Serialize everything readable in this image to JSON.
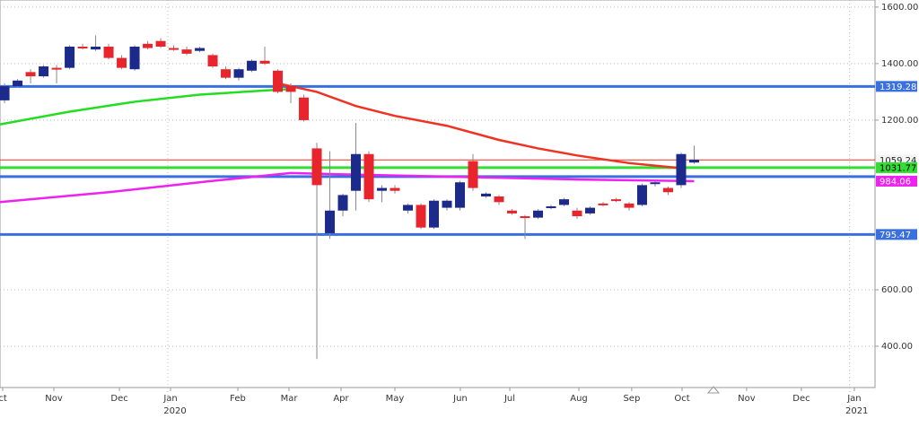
{
  "chart_data": {
    "type": "candlestick",
    "x": [
      0,
      1,
      2,
      3,
      4,
      5,
      6,
      7,
      8,
      9,
      10,
      11,
      12,
      13,
      14,
      15,
      16,
      17,
      18,
      19,
      20,
      21,
      22,
      23,
      24,
      25,
      26,
      27,
      28,
      29,
      30,
      31,
      32,
      33,
      34,
      35,
      36,
      37,
      38,
      39,
      40,
      41,
      42,
      43,
      44,
      45,
      46,
      47,
      48,
      49,
      50,
      51,
      52,
      53
    ],
    "open": [
      1270,
      1320,
      1370,
      1355,
      1385,
      1385,
      1460,
      1450,
      1460,
      1420,
      1380,
      1470,
      1480,
      1455,
      1450,
      1445,
      1430,
      1380,
      1350,
      1375,
      1410,
      1375,
      1320,
      1280,
      1100,
      800,
      880,
      950,
      1080,
      950,
      960,
      880,
      900,
      820,
      890,
      890,
      1055,
      930,
      930,
      880,
      860,
      855,
      890,
      900,
      880,
      870,
      905,
      920,
      905,
      900,
      975,
      960,
      970,
      1050
    ],
    "high": [
      1330,
      1345,
      1380,
      1395,
      1395,
      1465,
      1470,
      1500,
      1470,
      1430,
      1465,
      1480,
      1490,
      1465,
      1460,
      1460,
      1435,
      1390,
      1385,
      1415,
      1460,
      1380,
      1330,
      1290,
      1120,
      1090,
      940,
      1190,
      1090,
      970,
      970,
      905,
      905,
      920,
      920,
      985,
      1080,
      945,
      935,
      885,
      865,
      885,
      900,
      925,
      890,
      895,
      910,
      925,
      910,
      975,
      985,
      965,
      1085,
      1110
    ],
    "low": [
      1260,
      1315,
      1330,
      1350,
      1330,
      1380,
      1450,
      1445,
      1415,
      1380,
      1375,
      1450,
      1455,
      1445,
      1430,
      1440,
      1385,
      1345,
      1340,
      1370,
      1395,
      1295,
      1260,
      1195,
      355,
      780,
      860,
      880,
      910,
      910,
      940,
      870,
      815,
      815,
      880,
      880,
      950,
      925,
      900,
      865,
      780,
      850,
      885,
      895,
      850,
      865,
      895,
      910,
      880,
      895,
      965,
      935,
      960,
      1045
    ],
    "close": [
      1320,
      1340,
      1355,
      1390,
      1380,
      1460,
      1455,
      1460,
      1420,
      1385,
      1460,
      1455,
      1460,
      1450,
      1435,
      1455,
      1390,
      1350,
      1380,
      1410,
      1400,
      1300,
      1300,
      1200,
      970,
      880,
      935,
      1080,
      920,
      960,
      950,
      900,
      820,
      915,
      915,
      980,
      960,
      940,
      910,
      870,
      855,
      880,
      895,
      920,
      860,
      890,
      900,
      915,
      890,
      970,
      980,
      945,
      1080,
      1060
    ],
    "up_color": "#1c2a8c",
    "down_color": "#e8242c",
    "xlim": [
      -0.35,
      66.9
    ],
    "xticks": [
      {
        "value": -0.14,
        "label": "ct"
      },
      {
        "value": 3.79,
        "label": "Nov"
      },
      {
        "value": 8.83,
        "label": "Dec"
      },
      {
        "value": 12.76,
        "label": "Jan"
      },
      {
        "value": 17.93,
        "label": "Feb"
      },
      {
        "value": 21.86,
        "label": "Mar"
      },
      {
        "value": 25.86,
        "label": "Apr"
      },
      {
        "value": 30.0,
        "label": "May"
      },
      {
        "value": 35.03,
        "label": "Jun"
      },
      {
        "value": 38.83,
        "label": "Jul"
      },
      {
        "value": 44.14,
        "label": "Aug"
      },
      {
        "value": 48.2,
        "label": "Sep"
      },
      {
        "value": 52.07,
        "label": "Oct"
      },
      {
        "value": 57.03,
        "label": "Nov"
      },
      {
        "value": 61.24,
        "label": "Dec"
      },
      {
        "value": 65.31,
        "label": "Jan"
      }
    ],
    "year_ticks": [
      {
        "value": 13.1,
        "label": "2020"
      },
      {
        "value": 65.5,
        "label": "2021"
      }
    ],
    "ylim": [
      254,
      1625
    ],
    "yticks": [
      {
        "value": 400,
        "label": "400.00"
      },
      {
        "value": 600,
        "label": "600.00"
      },
      {
        "value": 1200,
        "label": "1200.00"
      },
      {
        "value": 1400,
        "label": "1400.00"
      },
      {
        "value": 1600,
        "label": "1600.00"
      }
    ],
    "grid": true,
    "lines": [
      {
        "color": "#22dd22",
        "x": [
          -0.35,
          5,
          10,
          15,
          20,
          22
        ],
        "values": [
          1185,
          1230,
          1265,
          1290,
          1305,
          1310
        ]
      },
      {
        "color": "#ee3322",
        "x": [
          21,
          24,
          27,
          30,
          34,
          38,
          41,
          44,
          48,
          52
        ],
        "values": [
          1330,
          1300,
          1250,
          1215,
          1180,
          1130,
          1100,
          1075,
          1048,
          1030
        ]
      },
      {
        "color": "#ee22ee",
        "x": [
          -0.35,
          8,
          16,
          22,
          26,
          34,
          44,
          53
        ],
        "values": [
          910,
          945,
          985,
          1013,
          1008,
          1000,
          990,
          984.06
        ]
      }
    ],
    "plain_levels": [
      {
        "value": 1000,
        "color": "#3a6fe0"
      }
    ],
    "levels": [
      {
        "value": 1319.28,
        "color": "#3a6fe0",
        "text_color": "#ffffff",
        "width": 3
      },
      {
        "value": 1059.24,
        "color": "#ee3322",
        "text_color": "#222222",
        "width": 1
      },
      {
        "value": 1031.77,
        "color": "#33dd33",
        "text_color": "#000000",
        "width": 3
      },
      {
        "value": 984.06,
        "color": "#ee22ee",
        "text_color": "#ffffff",
        "width": 0
      },
      {
        "value": 795.47,
        "color": "#3a6fe0",
        "text_color": "#ffffff",
        "width": 3
      }
    ]
  }
}
